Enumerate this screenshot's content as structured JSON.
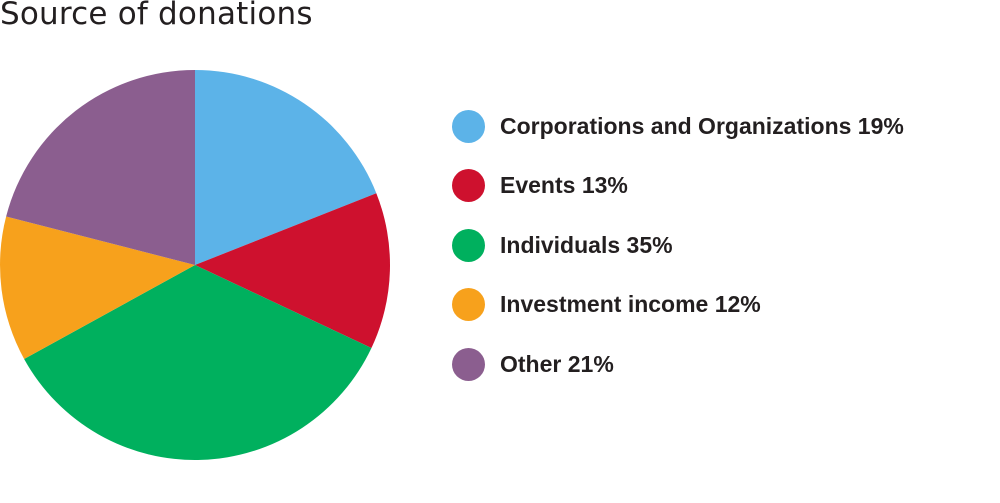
{
  "chart_data": {
    "type": "pie",
    "title": "Source of donations",
    "slices": [
      {
        "label": "Corporations and Organizations 19%",
        "value": 19,
        "color": "#5cb3e8"
      },
      {
        "label": "Events 13%",
        "value": 13,
        "color": "#ce112e"
      },
      {
        "label": "Individuals 35%",
        "value": 35,
        "color": "#00b05e"
      },
      {
        "label": "Investment income 12%",
        "value": 12,
        "color": "#f7a11c"
      },
      {
        "label": "Other 21%",
        "value": 21,
        "color": "#8b5e8f"
      }
    ],
    "start_angle": "12 o'clock",
    "direction": "clockwise",
    "legend_position": "right"
  }
}
